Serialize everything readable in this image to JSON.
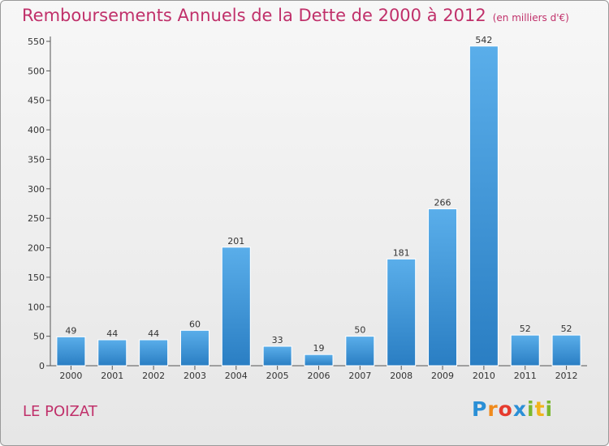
{
  "header": {
    "title": "Remboursements Annuels de la Dette de 2000 à 2012",
    "subtitle": "(en milliers d'€)"
  },
  "footer": {
    "place": "LE POIZAT",
    "logo_letters": [
      "P",
      "r",
      "o",
      "x",
      "i",
      "t",
      "i"
    ]
  },
  "colors": {
    "title": "#c0306a",
    "bar_top": "#5aaeea",
    "bar_bottom": "#2a7ec3",
    "axis": "#555555",
    "grid": "#cfcfcf"
  },
  "chart_data": {
    "type": "bar",
    "title": "Remboursements Annuels de la Dette de 2000 à 2012",
    "subtitle": "(en milliers d'€)",
    "categories": [
      "2000",
      "2001",
      "2002",
      "2003",
      "2004",
      "2005",
      "2006",
      "2007",
      "2008",
      "2009",
      "2010",
      "2011",
      "2012"
    ],
    "values": [
      49,
      44,
      44,
      60,
      201,
      33,
      19,
      50,
      181,
      266,
      542,
      52,
      52
    ],
    "ylim": [
      0,
      550
    ],
    "yticks": [
      0,
      50,
      100,
      150,
      200,
      250,
      300,
      350,
      400,
      450,
      500,
      550
    ],
    "data_labels": true,
    "grid": false,
    "legend": "none"
  }
}
